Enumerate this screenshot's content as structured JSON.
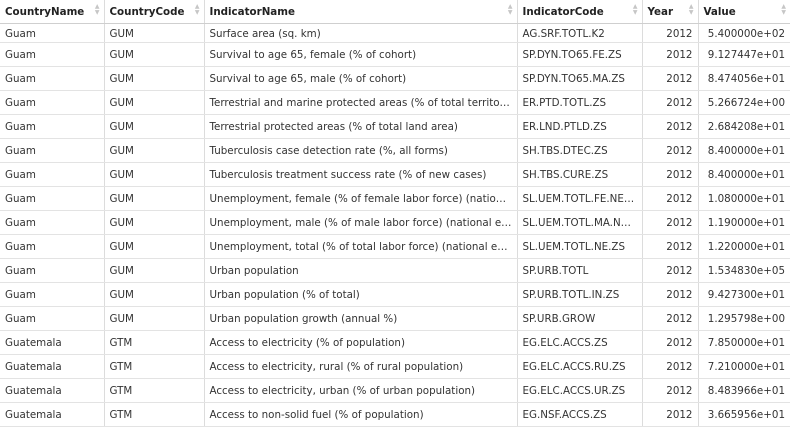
{
  "table": {
    "columns": [
      {
        "label": "CountryName",
        "sort_icon": "sort-arrows-icon"
      },
      {
        "label": "CountryCode",
        "sort_icon": "sort-arrows-icon"
      },
      {
        "label": "IndicatorName",
        "sort_icon": "sort-arrows-icon"
      },
      {
        "label": "IndicatorCode",
        "sort_icon": "sort-arrows-icon"
      },
      {
        "label": "Year",
        "sort_icon": "sort-arrows-icon"
      },
      {
        "label": "Value",
        "sort_icon": "sort-arrows-icon"
      }
    ],
    "rows": [
      {
        "country_name": "Guam",
        "country_code": "GUM",
        "indicator_name": "Surface area (sq. km)",
        "indicator_code": "AG.SRF.TOTL.K2",
        "year": "2012",
        "value": "5.400000e+02"
      },
      {
        "country_name": "Guam",
        "country_code": "GUM",
        "indicator_name": "Survival to age 65, female (% of cohort)",
        "indicator_code": "SP.DYN.TO65.FE.ZS",
        "year": "2012",
        "value": "9.127447e+01"
      },
      {
        "country_name": "Guam",
        "country_code": "GUM",
        "indicator_name": "Survival to age 65, male (% of cohort)",
        "indicator_code": "SP.DYN.TO65.MA.ZS",
        "year": "2012",
        "value": "8.474056e+01"
      },
      {
        "country_name": "Guam",
        "country_code": "GUM",
        "indicator_name": "Terrestrial and marine protected areas (% of total territorial ...",
        "indicator_code": "ER.PTD.TOTL.ZS",
        "year": "2012",
        "value": "5.266724e+00"
      },
      {
        "country_name": "Guam",
        "country_code": "GUM",
        "indicator_name": "Terrestrial protected areas (% of total land area)",
        "indicator_code": "ER.LND.PTLD.ZS",
        "year": "2012",
        "value": "2.684208e+01"
      },
      {
        "country_name": "Guam",
        "country_code": "GUM",
        "indicator_name": "Tuberculosis case detection rate (%, all forms)",
        "indicator_code": "SH.TBS.DTEC.ZS",
        "year": "2012",
        "value": "8.400000e+01"
      },
      {
        "country_name": "Guam",
        "country_code": "GUM",
        "indicator_name": "Tuberculosis treatment success rate (% of new cases)",
        "indicator_code": "SH.TBS.CURE.ZS",
        "year": "2012",
        "value": "8.400000e+01"
      },
      {
        "country_name": "Guam",
        "country_code": "GUM",
        "indicator_name": "Unemployment, female (% of female labor force) (national e...",
        "indicator_code": "SL.UEM.TOTL.FE.NE.ZS",
        "year": "2012",
        "value": "1.080000e+01"
      },
      {
        "country_name": "Guam",
        "country_code": "GUM",
        "indicator_name": "Unemployment, male (% of male labor force) (national esti...",
        "indicator_code": "SL.UEM.TOTL.MA.NE.ZS",
        "year": "2012",
        "value": "1.190000e+01"
      },
      {
        "country_name": "Guam",
        "country_code": "GUM",
        "indicator_name": "Unemployment, total (% of total labor force) (national estim...",
        "indicator_code": "SL.UEM.TOTL.NE.ZS",
        "year": "2012",
        "value": "1.220000e+01"
      },
      {
        "country_name": "Guam",
        "country_code": "GUM",
        "indicator_name": "Urban population",
        "indicator_code": "SP.URB.TOTL",
        "year": "2012",
        "value": "1.534830e+05"
      },
      {
        "country_name": "Guam",
        "country_code": "GUM",
        "indicator_name": "Urban population (% of total)",
        "indicator_code": "SP.URB.TOTL.IN.ZS",
        "year": "2012",
        "value": "9.427300e+01"
      },
      {
        "country_name": "Guam",
        "country_code": "GUM",
        "indicator_name": "Urban population growth (annual %)",
        "indicator_code": "SP.URB.GROW",
        "year": "2012",
        "value": "1.295798e+00"
      },
      {
        "country_name": "Guatemala",
        "country_code": "GTM",
        "indicator_name": "Access to electricity (% of population)",
        "indicator_code": "EG.ELC.ACCS.ZS",
        "year": "2012",
        "value": "7.850000e+01"
      },
      {
        "country_name": "Guatemala",
        "country_code": "GTM",
        "indicator_name": "Access to electricity, rural (% of rural population)",
        "indicator_code": "EG.ELC.ACCS.RU.ZS",
        "year": "2012",
        "value": "7.210000e+01"
      },
      {
        "country_name": "Guatemala",
        "country_code": "GTM",
        "indicator_name": "Access to electricity, urban (% of urban population)",
        "indicator_code": "EG.ELC.ACCS.UR.ZS",
        "year": "2012",
        "value": "8.483966e+01"
      },
      {
        "country_name": "Guatemala",
        "country_code": "GTM",
        "indicator_name": "Access to non-solid fuel (% of population)",
        "indicator_code": "EG.NSF.ACCS.ZS",
        "year": "2012",
        "value": "3.665956e+01"
      }
    ]
  }
}
